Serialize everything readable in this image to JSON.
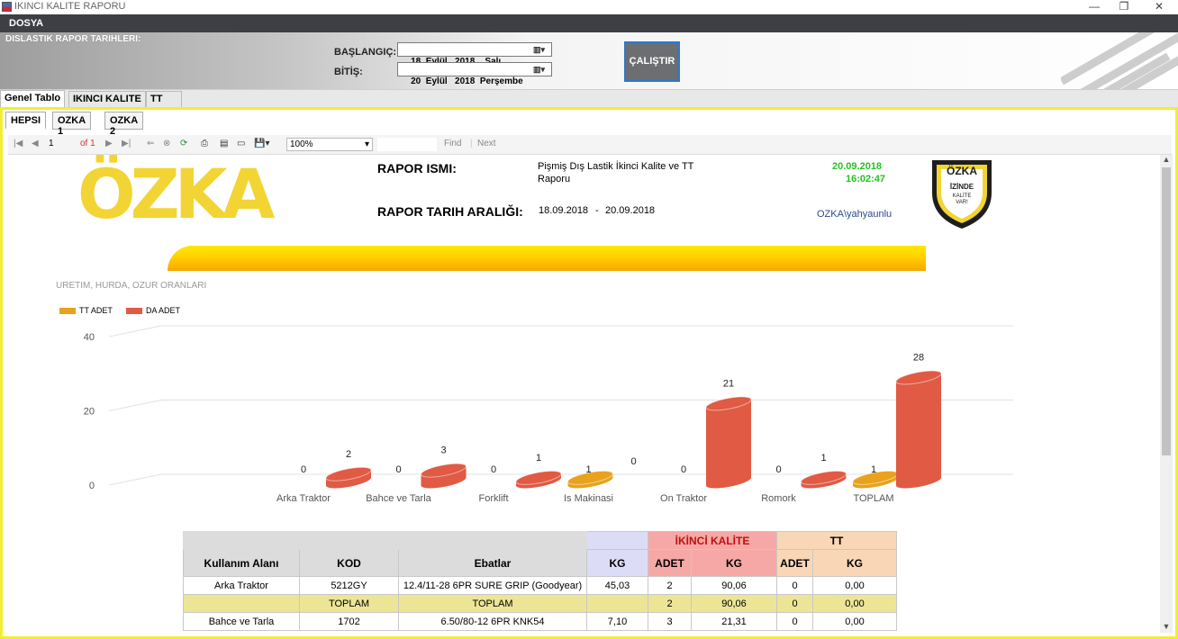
{
  "window": {
    "title": "IKINCI KALITE RAPORU",
    "minimize": "—",
    "restore": "❐",
    "close": "✕"
  },
  "menu": {
    "file": "DOSYA"
  },
  "header": {
    "section_label": "DISLASTIK RAPOR TARIHLERI:",
    "start_label": "BAŞLANGIÇ:",
    "end_label": "BİTİŞ:",
    "start_date": "18  Eylül   2018    Salı",
    "end_date": "20  Eylül   2018  Perşembe",
    "run_button": "ÇALIŞTIR"
  },
  "tabs": [
    "Genel Tablo",
    "IKINCI KALITE",
    "TT"
  ],
  "subtabs": [
    "HEPSI",
    "OZKA 1",
    "OZKA 2"
  ],
  "toolbar": {
    "page": "1",
    "of": "of 1",
    "zoom": "100%",
    "find": "Find",
    "sep": "|",
    "next": "Next"
  },
  "report": {
    "logo_text": "ÖZKA",
    "name_label": "RAPOR ISMI:",
    "name_value_1": "Pişmiş Dış Lastik İkinci Kalite ve TT",
    "name_value_2": "Raporu",
    "range_label": "RAPOR TARIH ARALIĞI:",
    "range_start": "18.09.2018",
    "range_sep": "-",
    "range_end": "20.09.2018",
    "print_date": "20.09.2018",
    "print_time": "16:02:47",
    "user": "OZKA\\yahyaunlu",
    "shield_text_1": "ÖZKA",
    "shield_text_2": "İZİNDE",
    "shield_text_3": "KALİTE",
    "shield_text_4": "VAR!"
  },
  "chart_data": {
    "type": "bar",
    "title": "URETIM, HURDA, OZUR ORANLARI",
    "categories": [
      "Arka Traktor",
      "Bahce ve Tarla",
      "Forklift",
      "Is Makinasi",
      "On Traktor",
      "Romork",
      "TOPLAM"
    ],
    "series": [
      {
        "name": "TT ADET",
        "values": [
          0,
          0,
          0,
          1,
          0,
          0,
          1
        ],
        "color": "#e8a21c"
      },
      {
        "name": "DA ADET",
        "values": [
          2,
          3,
          1,
          0,
          21,
          1,
          28
        ],
        "color": "#e05a44"
      }
    ],
    "ylim": [
      0,
      40
    ],
    "yticks": [
      "0",
      "20",
      "40"
    ],
    "legend": "top-left",
    "style": "3d-cylinder"
  },
  "table": {
    "group_headers": {
      "ikinci": "İKİNCİ KALİTE",
      "tt": "TT"
    },
    "columns": {
      "kullanim": "Kullanım Alanı",
      "kod": "KOD",
      "ebat": "Ebatlar",
      "kg": "KG",
      "adet": "ADET",
      "ik_kg": "KG",
      "tt_adet": "ADET",
      "tt_kg": "KG"
    },
    "rows": [
      {
        "kullanim": "Arka Traktor",
        "kod": "5212GY",
        "ebat": "12.4/11-28 6PR SURE GRIP (Goodyear)",
        "kg": "45,03",
        "adet": "2",
        "ik_kg": "90,06",
        "tt_adet": "0",
        "tt_kg": "0,00"
      },
      {
        "kullanim": "",
        "kod": "TOPLAM",
        "ebat": "TOPLAM",
        "kg": "",
        "adet": "2",
        "ik_kg": "90,06",
        "tt_adet": "0",
        "tt_kg": "0,00"
      },
      {
        "kullanim": "Bahce ve Tarla",
        "kod": "1702",
        "ebat": "6.50/80-12 6PR KNK54",
        "kg": "7,10",
        "adet": "3",
        "ik_kg": "21,31",
        "tt_adet": "0",
        "tt_kg": "0,00"
      }
    ]
  }
}
